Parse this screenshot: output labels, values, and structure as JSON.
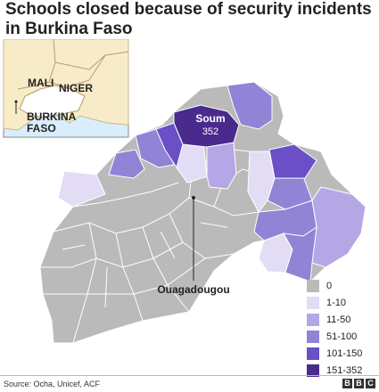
{
  "title": "Schools closed because of security incidents in Burkina Faso",
  "inset": {
    "labels": {
      "mali": "MALI",
      "niger": "NIGER",
      "burkina_line1": "BURKINA",
      "burkina_line2": "FASO"
    }
  },
  "callouts": {
    "soum_name": "Soum",
    "soum_value": "352",
    "capital": "Ouagadougou"
  },
  "legend": {
    "items": [
      {
        "label": "0",
        "color": "#bababa"
      },
      {
        "label": "1-10",
        "color": "#e3dcf5"
      },
      {
        "label": "11-50",
        "color": "#b5a7e6"
      },
      {
        "label": "51-100",
        "color": "#9183d6"
      },
      {
        "label": "101-150",
        "color": "#6a4fc6"
      },
      {
        "label": "151-352",
        "color": "#4a2a8c"
      }
    ]
  },
  "source": "Source: Ocha, Unicef, ACF",
  "brand": [
    "B",
    "B",
    "C"
  ]
}
